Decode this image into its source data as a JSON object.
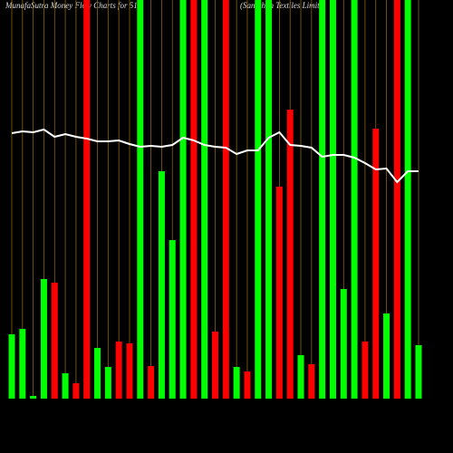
{
  "chart_data": {
    "type": "bar",
    "title": "MunafaSutra  Money Flow  Charts for 514",
    "subtitle": "(Sanathan  Textiles Limit",
    "values": [
      71,
      77,
      3,
      132,
      128,
      28,
      17,
      440,
      56,
      35,
      63,
      61,
      440,
      36,
      251,
      175,
      440,
      440,
      440,
      74,
      440,
      35,
      30,
      440,
      440,
      234,
      319,
      48,
      38,
      440,
      440,
      121,
      440,
      63,
      298,
      94,
      440,
      440,
      59
    ],
    "bar_colors": [
      "#00ff00",
      "#00ff00",
      "#00ff00",
      "#00ff00",
      "#ff0000",
      "#00ff00",
      "#ff0000",
      "#ff0000",
      "#00ff00",
      "#00ff00",
      "#ff0000",
      "#ff0000",
      "#00ff00",
      "#ff0000",
      "#00ff00",
      "#00ff00",
      "#00ff00",
      "#ff0000",
      "#00ff00",
      "#ff0000",
      "#ff0000",
      "#00ff00",
      "#ff0000",
      "#00ff00",
      "#00ff00",
      "#ff0000",
      "#ff0000",
      "#00ff00",
      "#ff0000",
      "#00ff00",
      "#00ff00",
      "#00ff00",
      "#00ff00",
      "#ff0000",
      "#ff0000",
      "#00ff00",
      "#ff0000",
      "#00ff00",
      "#00ff00"
    ],
    "line_values": [
      293,
      295,
      294,
      297,
      289,
      292,
      289,
      287,
      284,
      284,
      285,
      281,
      278,
      279,
      278,
      280,
      288,
      285,
      280,
      278,
      277,
      270,
      274,
      274,
      288,
      294,
      280,
      279,
      277,
      267,
      269,
      269,
      266,
      260,
      253,
      254,
      239,
      251,
      251
    ],
    "line_color": "#ffffff",
    "grid_color": "#8b6508",
    "grid": true,
    "ylim": [
      0,
      440
    ]
  }
}
